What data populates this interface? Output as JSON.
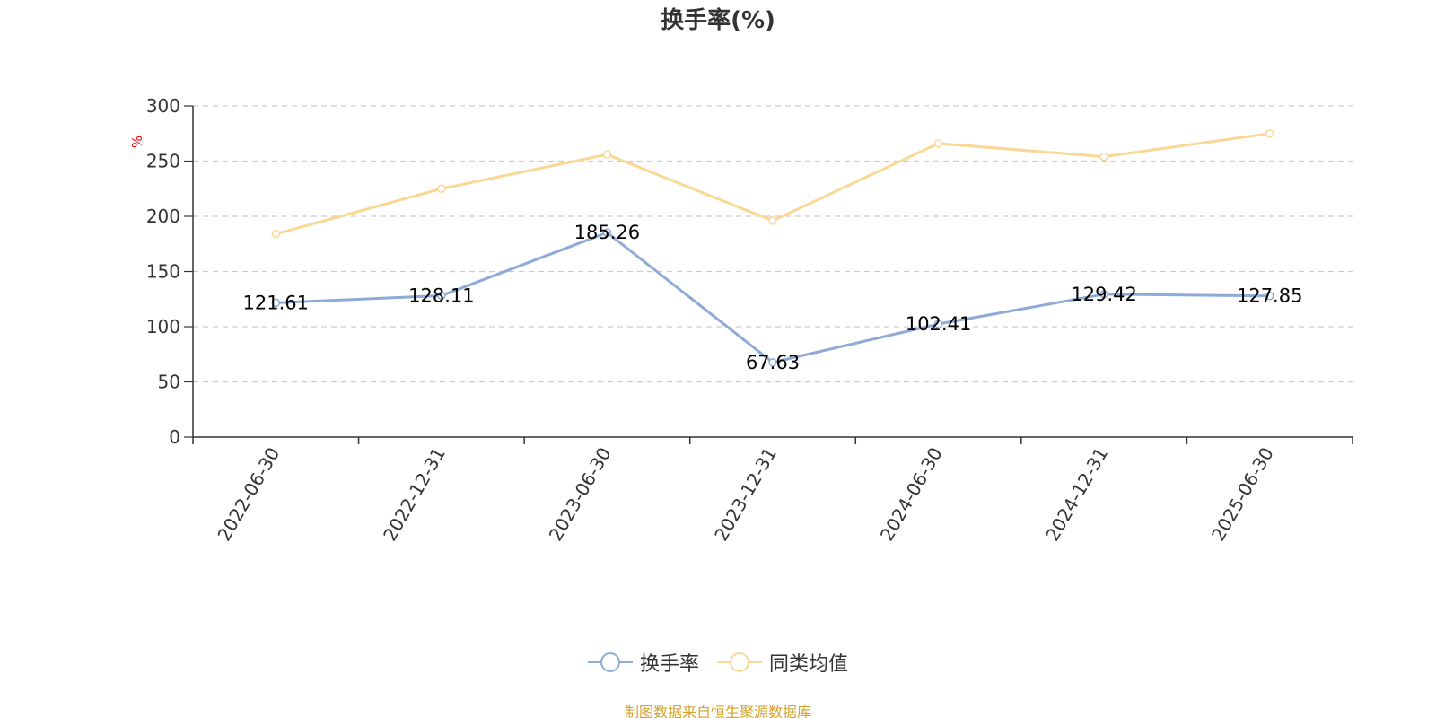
{
  "chart_data": {
    "type": "line",
    "title": "换手率(%)",
    "ylabel": "%",
    "xlabel": "",
    "ylim": [
      0,
      300
    ],
    "yticks": [
      0,
      50,
      100,
      150,
      200,
      250,
      300
    ],
    "grid": true,
    "legend_position": "bottom",
    "categories": [
      "2022-06-30",
      "2022-12-31",
      "2023-06-30",
      "2023-12-31",
      "2024-06-30",
      "2024-12-31",
      "2025-06-30"
    ],
    "series": [
      {
        "name": "换手率",
        "color": "#8eaad6",
        "values": [
          121.61,
          128.11,
          185.26,
          67.63,
          102.41,
          129.42,
          127.85
        ],
        "labels": [
          "121.61",
          "128.11",
          "185.26",
          "67.63",
          "102.41",
          "129.42",
          "127.85"
        ]
      },
      {
        "name": "同类均值",
        "color": "#fad795",
        "values": [
          184,
          225,
          256,
          196,
          266,
          254,
          275
        ]
      }
    ]
  },
  "source_note": {
    "text": "制图数据来自恒生聚源数据库",
    "color": "#d4a42b"
  }
}
